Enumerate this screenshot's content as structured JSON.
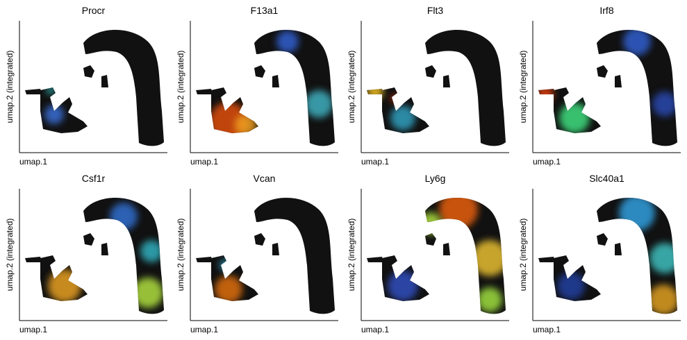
{
  "chart_data": [
    {
      "type": "scatter",
      "title": "Procr",
      "xlabel": "umap.1",
      "ylabel": "umap.2 (integrated)"
    },
    {
      "type": "scatter",
      "title": "F13a1",
      "xlabel": "umap.1",
      "ylabel": "umap.2 (integrated)"
    },
    {
      "type": "scatter",
      "title": "Flt3",
      "xlabel": "umap.1",
      "ylabel": "umap.2 (integrated)"
    },
    {
      "type": "scatter",
      "title": "Irf8",
      "xlabel": "umap.1",
      "ylabel": "umap.2 (integrated)"
    },
    {
      "type": "scatter",
      "title": "Csf1r",
      "xlabel": "umap.1",
      "ylabel": "umap.2 (integrated)"
    },
    {
      "type": "scatter",
      "title": "Vcan",
      "xlabel": "umap.1",
      "ylabel": "umap.2 (integrated)"
    },
    {
      "type": "scatter",
      "title": "Ly6g",
      "xlabel": "umap.1",
      "ylabel": "umap.2 (integrated)"
    },
    {
      "type": "scatter",
      "title": "Slc40a1",
      "xlabel": "umap.1",
      "ylabel": "umap.2 (integrated)"
    }
  ]
}
